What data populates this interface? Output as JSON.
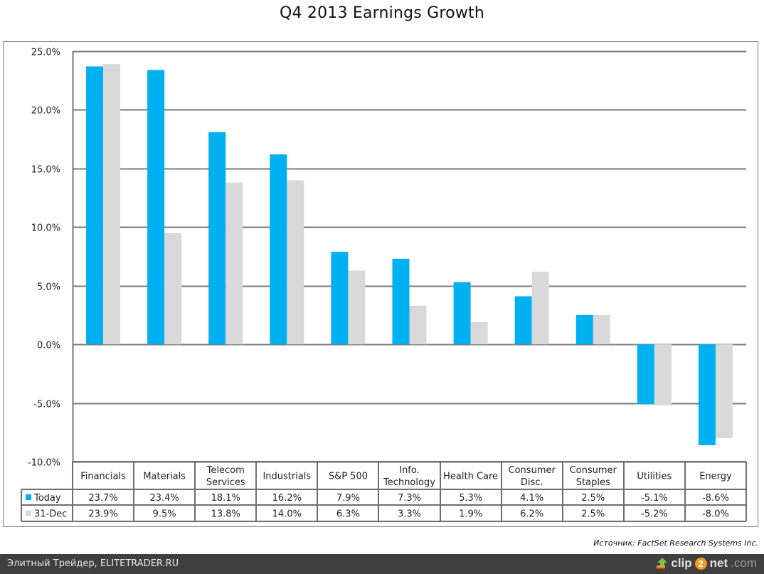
{
  "chart_data": {
    "type": "bar",
    "title": "Q4 2013 Earnings Growth",
    "xlabel": "",
    "ylabel": "",
    "ylim": [
      -10,
      25
    ],
    "yticks": [
      25,
      20,
      15,
      10,
      5,
      0,
      -5,
      -10
    ],
    "ytick_labels": [
      "25.0%",
      "20.0%",
      "15.0%",
      "10.0%",
      "5.0%",
      "0.0%",
      "-5.0%",
      "-10.0%"
    ],
    "grid": true,
    "legend": "data-table-left",
    "categories": [
      [
        "Financials"
      ],
      [
        "Materials"
      ],
      [
        "Telecom",
        "Services"
      ],
      [
        "Industrials"
      ],
      [
        "S&P 500"
      ],
      [
        "Info.",
        "Technology"
      ],
      [
        "Health Care"
      ],
      [
        "Consumer",
        "Disc."
      ],
      [
        "Consumer",
        "Staples"
      ],
      [
        "Utilities"
      ],
      [
        "Energy"
      ]
    ],
    "series": [
      {
        "name": "Today",
        "color": "#00b0f0",
        "values": [
          23.7,
          23.4,
          18.1,
          16.2,
          7.9,
          7.3,
          5.3,
          4.1,
          2.5,
          -5.1,
          -8.6
        ],
        "labels": [
          "23.7%",
          "23.4%",
          "18.1%",
          "16.2%",
          "7.9%",
          "7.3%",
          "5.3%",
          "4.1%",
          "2.5%",
          "-5.1%",
          "-8.6%"
        ]
      },
      {
        "name": "31-Dec",
        "color": "#d9d9d9",
        "values": [
          23.9,
          9.5,
          13.8,
          14.0,
          6.3,
          3.3,
          1.9,
          6.2,
          2.5,
          -5.2,
          -8.0
        ],
        "labels": [
          "23.9%",
          "9.5%",
          "13.8%",
          "14.0%",
          "6.3%",
          "3.3%",
          "1.9%",
          "6.2%",
          "2.5%",
          "-5.2%",
          "-8.0%"
        ]
      }
    ]
  },
  "source": "Источник: FactSet Research Systems Inc.",
  "footer": {
    "left_text": "Элитный Трейдер, ELITETRADER.RU",
    "brand_prefix": "clip",
    "brand_two": "2",
    "brand_net": "net",
    "brand_suffix": ".com",
    "brand_icon": "upload-arrow-icon"
  }
}
